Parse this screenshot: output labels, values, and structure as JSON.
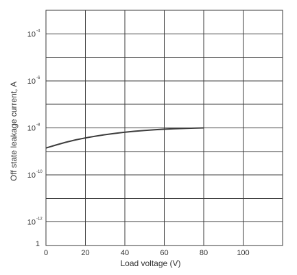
{
  "chart_data": {
    "type": "line",
    "xlabel": "Load voltage (V)",
    "ylabel": "Off state leakage current, A",
    "x_ticks": [
      0,
      20,
      40,
      60,
      80,
      100
    ],
    "x_gridlines": [
      0,
      20,
      40,
      60,
      80,
      100,
      120
    ],
    "xlim": [
      0,
      120
    ],
    "y_scale": "log",
    "ylim": [
      1e-13,
      0.001
    ],
    "y_ticks": [
      {
        "base": "10",
        "exp": "-4"
      },
      {
        "base": "10",
        "exp": "-6"
      },
      {
        "base": "10",
        "exp": "-8"
      },
      {
        "base": "10",
        "exp": "-10"
      },
      {
        "base": "10",
        "exp": "-12"
      },
      {
        "base": "1",
        "exp": ""
      }
    ],
    "grid": true,
    "series": [
      {
        "x": [
          0,
          10,
          20,
          30,
          40,
          50,
          60,
          70,
          80
        ],
        "y": [
          1.4e-09,
          2.5e-09,
          3.8e-09,
          5.2e-09,
          6.6e-09,
          7.8e-09,
          8.8e-09,
          9.5e-09,
          1e-08
        ]
      }
    ]
  }
}
